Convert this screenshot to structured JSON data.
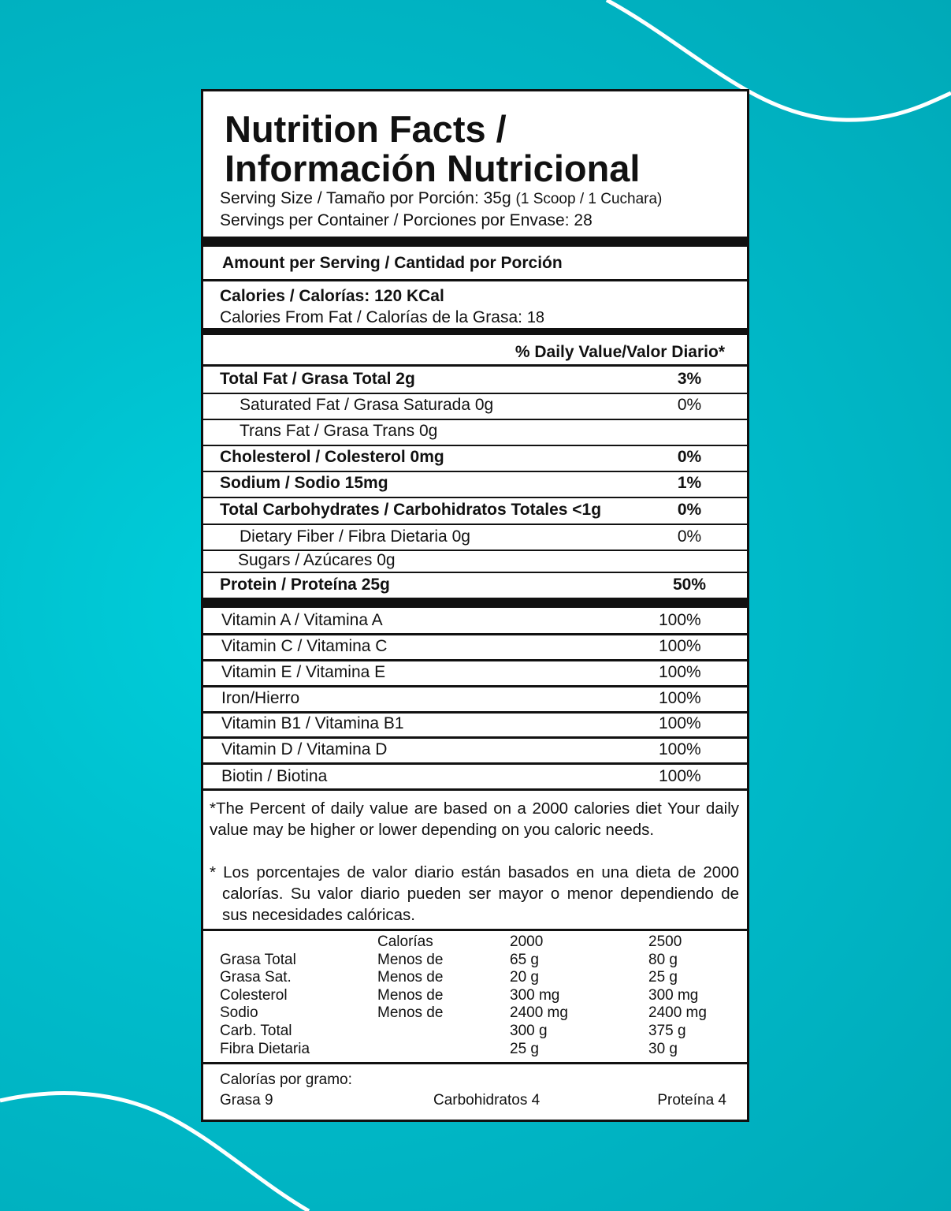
{
  "title": [
    "Nutrition Facts /",
    "Información Nutricional"
  ],
  "serving_size": {
    "label": "Serving Size / Tamaño por Porción:",
    "value": "35g",
    "note": "(1 Scoop / 1 Cuchara)"
  },
  "servings_per_container": {
    "label": "Servings per Container / Porciones por Envase:",
    "value": "28"
  },
  "amount_per_serving": "Amount per Serving / Cantidad por Porción",
  "calories": {
    "label": "Calories / Calorías:",
    "value": "120 KCal"
  },
  "calories_from_fat": {
    "label": "Calories From Fat / Calorías de la Grasa:",
    "value": "18"
  },
  "daily_value_header": "% Daily Value/Valor Diario*",
  "nutrients": [
    {
      "label": "Total Fat / Grasa Total 2g",
      "dv": "3%"
    },
    {
      "label": "Saturated Fat / Grasa Saturada 0g",
      "dv": "0%"
    },
    {
      "label": "Trans Fat / Grasa Trans 0g"
    },
    {
      "label": "Cholesterol / Colesterol 0mg",
      "dv": "0%"
    },
    {
      "label": "Sodium / Sodio 15mg",
      "dv": "1%"
    },
    {
      "label": "Total Carbohydrates / Carbohidratos Totales <1g",
      "dv": "0%"
    },
    {
      "label": "Dietary Fiber / Fibra Dietaria 0g",
      "dv": "0%"
    },
    {
      "label": "Sugars / Azúcares 0g"
    },
    {
      "label": "Protein / Proteína 25g",
      "dv": "50%"
    }
  ],
  "vitamins": [
    {
      "label": "Vitamin A / Vitamina A",
      "dv": "100%"
    },
    {
      "label": "Vitamin C / Vitamina C",
      "dv": "100%"
    },
    {
      "label": "Vitamin E / Vitamina E",
      "dv": "100%"
    },
    {
      "label": "Iron/Hierro",
      "dv": "100%"
    },
    {
      "label": "Vitamin B1 / Vitamina B1",
      "dv": "100%"
    },
    {
      "label": "Vitamin D / Vitamina D",
      "dv": "100%"
    },
    {
      "label": "Biotin / Biotina",
      "dv": "100%"
    }
  ],
  "footnote": {
    "en": "*The Percent of daily value are based on a 2000 calories diet Your daily value may be higher or lower depending on you caloric needs.",
    "es": "* Los porcentajes de valor diario están basados en una dieta de 2000 calorías. Su valor diario pueden ser mayor o menor dependiendo de sus necesidades calóricas."
  },
  "reference_table": {
    "header": [
      "Calorías",
      "2000",
      "2500"
    ],
    "rows": [
      {
        "name": "Grasa Total",
        "limit": "Menos de",
        "v2000": "65 g",
        "v2500": "80 g"
      },
      {
        "name": "Grasa Sat.",
        "limit": "Menos de",
        "v2000": "20 g",
        "v2500": "25 g"
      },
      {
        "name": "Colesterol",
        "limit": "Menos de",
        "v2000": "300 mg",
        "v2500": "300 mg"
      },
      {
        "name": "Sodio",
        "limit": "Menos de",
        "v2000": "2400 mg",
        "v2500": "2400 mg"
      },
      {
        "name": "Carb. Total",
        "v2000": "300 g",
        "v2500": "375 g"
      },
      {
        "name": "Fibra Dietaria",
        "v2000": "25 g",
        "v2500": "30 g"
      }
    ]
  },
  "calories_per_gram": {
    "title": "Calorías por gramo:",
    "items": [
      "Grasa 9",
      "Carbohidratos 4",
      "Proteína 4"
    ]
  }
}
